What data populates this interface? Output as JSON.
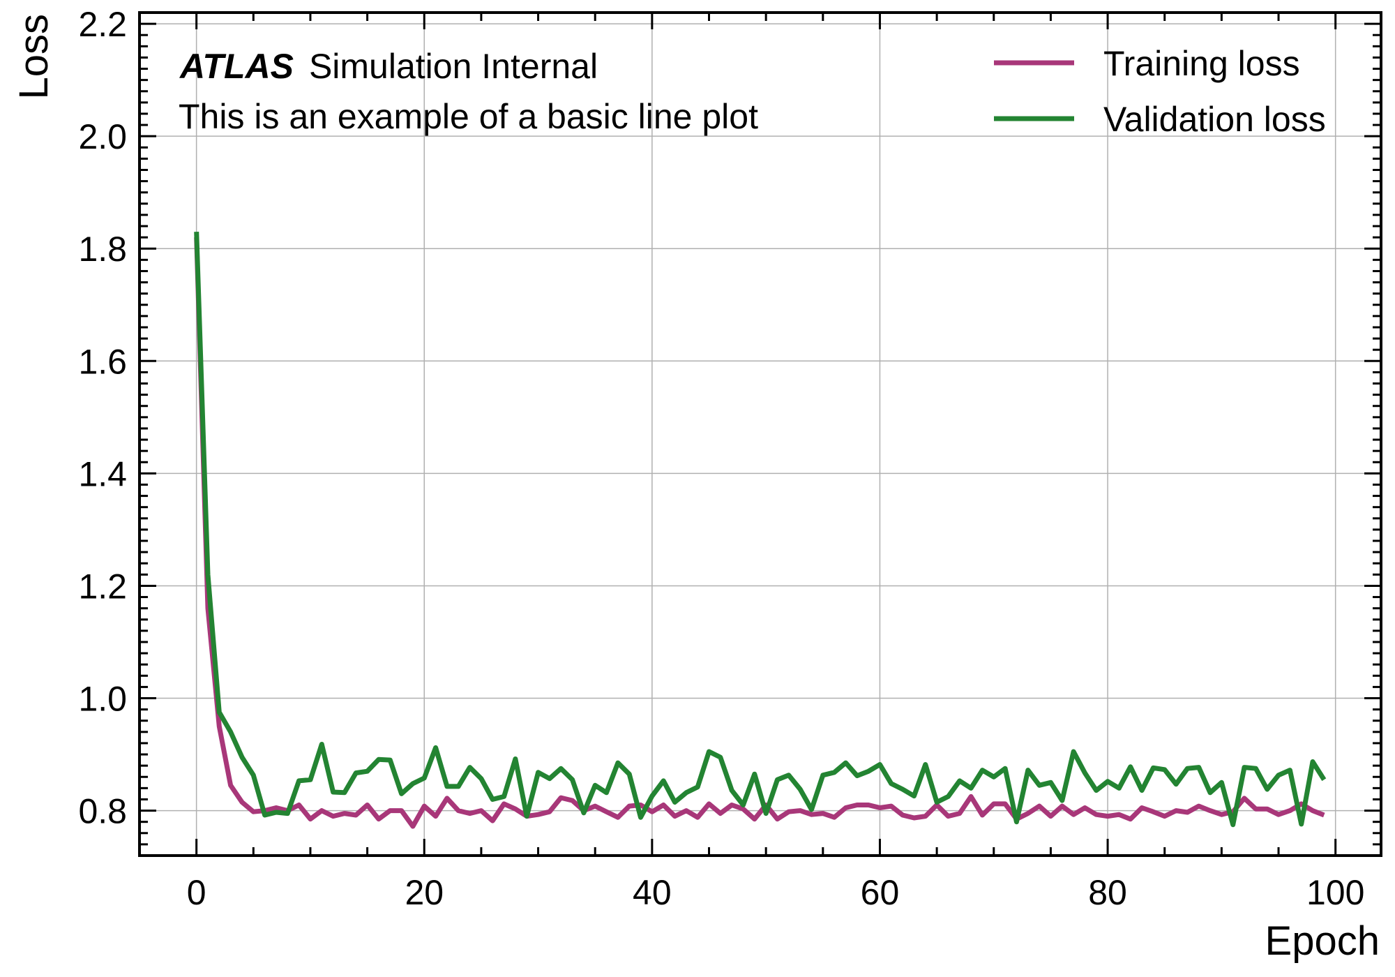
{
  "chart_data": {
    "type": "line",
    "title": "",
    "xlabel": "Epoch",
    "ylabel": "Loss",
    "xlim": [
      -5,
      104
    ],
    "ylim": [
      0.72,
      2.22
    ],
    "xticks": [
      0,
      20,
      40,
      60,
      80,
      100
    ],
    "yticks": [
      0.8,
      1.0,
      1.2,
      1.4,
      1.6,
      1.8,
      2.0,
      2.2
    ],
    "xtick_labels": [
      "0",
      "20",
      "40",
      "60",
      "80",
      "100"
    ],
    "ytick_labels": [
      "0.8",
      "1.0",
      "1.2",
      "1.4",
      "1.6",
      "1.8",
      "2.0",
      "2.2"
    ],
    "grid": true,
    "legend_position": "top-right",
    "annotation": {
      "experiment": "ATLAS",
      "label": "Simulation Internal",
      "subtitle": "This is an example of a basic line plot"
    },
    "x": [
      0,
      1,
      2,
      3,
      4,
      5,
      6,
      7,
      8,
      9,
      10,
      11,
      12,
      13,
      14,
      15,
      16,
      17,
      18,
      19,
      20,
      21,
      22,
      23,
      24,
      25,
      26,
      27,
      28,
      29,
      30,
      31,
      32,
      33,
      34,
      35,
      36,
      37,
      38,
      39,
      40,
      41,
      42,
      43,
      44,
      45,
      46,
      47,
      48,
      49,
      50,
      51,
      52,
      53,
      54,
      55,
      56,
      57,
      58,
      59,
      60,
      61,
      62,
      63,
      64,
      65,
      66,
      67,
      68,
      69,
      70,
      71,
      72,
      73,
      74,
      75,
      76,
      77,
      78,
      79,
      80,
      81,
      82,
      83,
      84,
      85,
      86,
      87,
      88,
      89,
      90,
      91,
      92,
      93,
      94,
      95,
      96,
      97,
      98,
      99
    ],
    "series": [
      {
        "name": "Training loss",
        "color": "#a83779",
        "values": [
          1.82,
          1.16,
          0.95,
          0.845,
          0.815,
          0.798,
          0.8,
          0.805,
          0.8,
          0.81,
          0.785,
          0.8,
          0.79,
          0.795,
          0.792,
          0.81,
          0.785,
          0.8,
          0.8,
          0.772,
          0.808,
          0.79,
          0.822,
          0.8,
          0.795,
          0.8,
          0.782,
          0.812,
          0.803,
          0.79,
          0.793,
          0.798,
          0.823,
          0.818,
          0.8,
          0.808,
          0.798,
          0.788,
          0.808,
          0.81,
          0.798,
          0.81,
          0.79,
          0.8,
          0.788,
          0.812,
          0.795,
          0.81,
          0.803,
          0.785,
          0.81,
          0.785,
          0.798,
          0.8,
          0.793,
          0.795,
          0.788,
          0.805,
          0.81,
          0.81,
          0.805,
          0.808,
          0.792,
          0.787,
          0.79,
          0.81,
          0.79,
          0.795,
          0.825,
          0.792,
          0.812,
          0.812,
          0.785,
          0.795,
          0.808,
          0.79,
          0.808,
          0.793,
          0.805,
          0.793,
          0.79,
          0.793,
          0.785,
          0.805,
          0.798,
          0.79,
          0.8,
          0.797,
          0.808,
          0.8,
          0.793,
          0.798,
          0.822,
          0.803,
          0.803,
          0.793,
          0.8,
          0.812,
          0.8,
          0.792
        ]
      },
      {
        "name": "Validation loss",
        "color": "#238432",
        "values": [
          1.83,
          1.22,
          0.975,
          0.94,
          0.895,
          0.863,
          0.792,
          0.797,
          0.795,
          0.853,
          0.855,
          0.918,
          0.833,
          0.832,
          0.867,
          0.87,
          0.891,
          0.89,
          0.83,
          0.848,
          0.858,
          0.912,
          0.843,
          0.843,
          0.877,
          0.857,
          0.82,
          0.825,
          0.892,
          0.79,
          0.868,
          0.857,
          0.875,
          0.855,
          0.796,
          0.845,
          0.832,
          0.885,
          0.865,
          0.788,
          0.826,
          0.853,
          0.815,
          0.832,
          0.842,
          0.905,
          0.895,
          0.836,
          0.81,
          0.865,
          0.795,
          0.855,
          0.863,
          0.838,
          0.802,
          0.863,
          0.868,
          0.885,
          0.862,
          0.87,
          0.882,
          0.848,
          0.838,
          0.826,
          0.882,
          0.815,
          0.825,
          0.853,
          0.84,
          0.872,
          0.86,
          0.875,
          0.78,
          0.872,
          0.845,
          0.85,
          0.818,
          0.905,
          0.867,
          0.836,
          0.852,
          0.84,
          0.878,
          0.836,
          0.876,
          0.873,
          0.847,
          0.875,
          0.877,
          0.832,
          0.85,
          0.775,
          0.877,
          0.875,
          0.838,
          0.863,
          0.872,
          0.776,
          0.887,
          0.855
        ]
      }
    ]
  }
}
